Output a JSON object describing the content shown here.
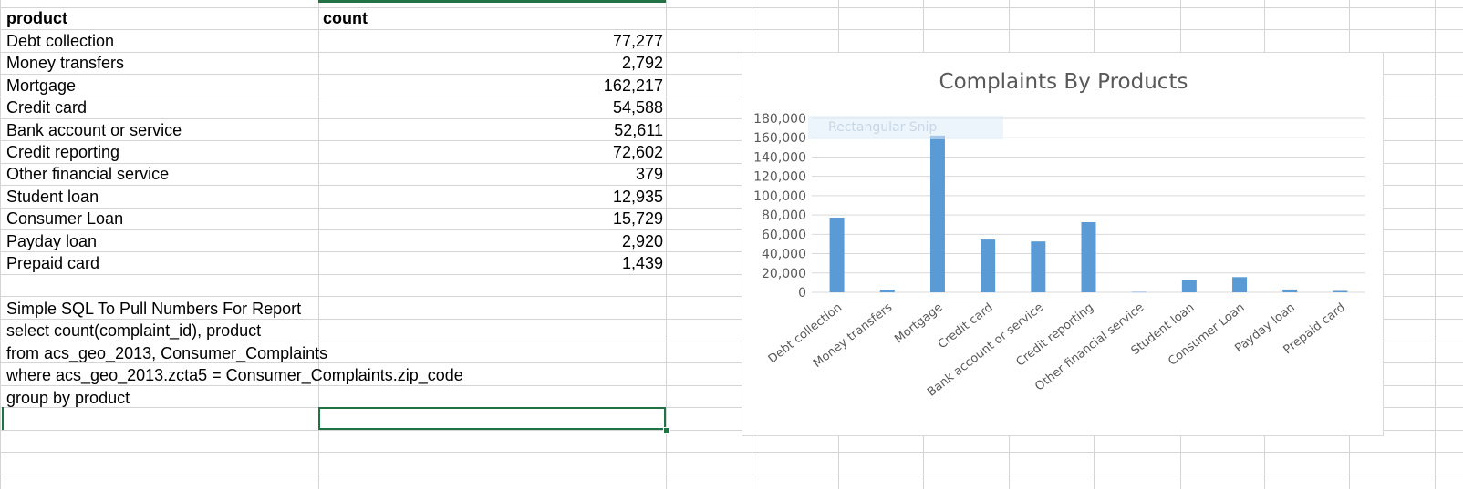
{
  "sheet": {
    "headers": {
      "product": "product",
      "count": "count"
    },
    "rows": [
      {
        "product": "Debt collection",
        "count": "77,277"
      },
      {
        "product": "Money transfers",
        "count": "2,792"
      },
      {
        "product": "Mortgage",
        "count": "162,217"
      },
      {
        "product": "Credit card",
        "count": "54,588"
      },
      {
        "product": "Bank account or service",
        "count": "52,611"
      },
      {
        "product": "Credit reporting",
        "count": "72,602"
      },
      {
        "product": "Other financial service",
        "count": "379"
      },
      {
        "product": "Student loan",
        "count": "12,935"
      },
      {
        "product": "Consumer Loan",
        "count": "15,729"
      },
      {
        "product": "Payday loan",
        "count": "2,920"
      },
      {
        "product": "Prepaid card",
        "count": "1,439"
      }
    ],
    "sql_lines": [
      "Simple SQL To Pull Numbers For Report",
      "select count(complaint_id), product",
      "from  acs_geo_2013, Consumer_Complaints",
      "where acs_geo_2013.zcta5 = Consumer_Complaints.zip_code",
      "group by product"
    ]
  },
  "snip_overlay_text": "Rectangular Snip",
  "colors": {
    "bar": "#5b9bd5",
    "grid": "#d9d9d9",
    "selection": "#217346",
    "axis_text": "#595959"
  },
  "chart_data": {
    "type": "bar",
    "title": "Complaints By Products",
    "categories": [
      "Debt collection",
      "Money transfers",
      "Mortgage",
      "Credit card",
      "Bank account or service",
      "Credit reporting",
      "Other financial service",
      "Student loan",
      "Consumer Loan",
      "Payday loan",
      "Prepaid card"
    ],
    "values": [
      77277,
      2792,
      162217,
      54588,
      52611,
      72602,
      379,
      12935,
      15729,
      2920,
      1439
    ],
    "ylim": [
      0,
      180000
    ],
    "yticks": [
      "0",
      "20,000",
      "40,000",
      "60,000",
      "80,000",
      "100,000",
      "120,000",
      "140,000",
      "160,000",
      "180,000"
    ],
    "grid": true,
    "legend": "none"
  }
}
